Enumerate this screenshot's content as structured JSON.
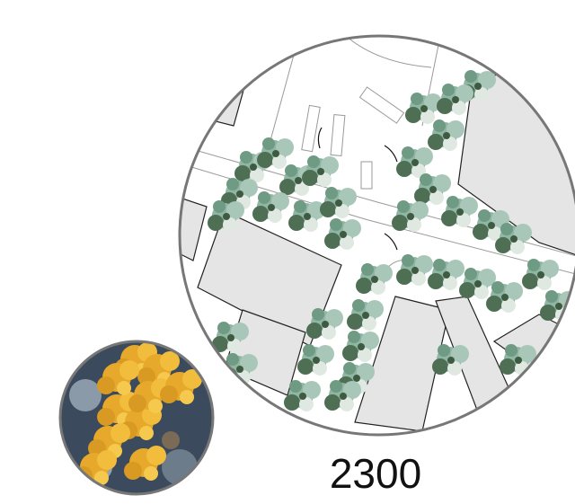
{
  "label": "2300"
}
